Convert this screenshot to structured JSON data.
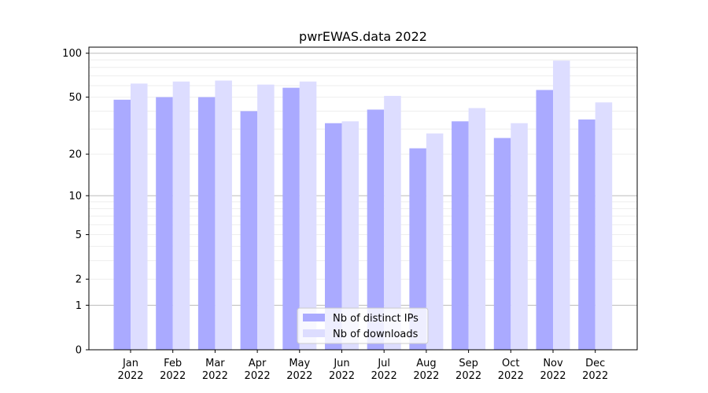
{
  "chart_data": {
    "type": "bar",
    "title": "pwrEWAS.data 2022",
    "xlabel": "",
    "ylabel": "",
    "scale": "log1p",
    "ylim": [
      0,
      110
    ],
    "yticks": [
      0,
      1,
      2,
      5,
      10,
      20,
      50,
      100
    ],
    "ytick_labels": [
      "0",
      "1",
      "2",
      "5",
      "10",
      "20",
      "50",
      "100"
    ],
    "categories": [
      [
        "Jan",
        "2022"
      ],
      [
        "Feb",
        "2022"
      ],
      [
        "Mar",
        "2022"
      ],
      [
        "Apr",
        "2022"
      ],
      [
        "May",
        "2022"
      ],
      [
        "Jun",
        "2022"
      ],
      [
        "Jul",
        "2022"
      ],
      [
        "Aug",
        "2022"
      ],
      [
        "Sep",
        "2022"
      ],
      [
        "Oct",
        "2022"
      ],
      [
        "Nov",
        "2022"
      ],
      [
        "Dec",
        "2022"
      ]
    ],
    "series": [
      {
        "name": "Nb of distinct IPs",
        "color": "#aaaaff",
        "values": [
          48,
          50,
          50,
          40,
          58,
          33,
          41,
          22,
          34,
          26,
          56,
          35
        ]
      },
      {
        "name": "Nb of downloads",
        "color": "#ddddff",
        "values": [
          62,
          64,
          65,
          61,
          64,
          34,
          51,
          28,
          42,
          33,
          89,
          46
        ]
      }
    ],
    "grid": true,
    "legend_position": "bottom-center"
  }
}
